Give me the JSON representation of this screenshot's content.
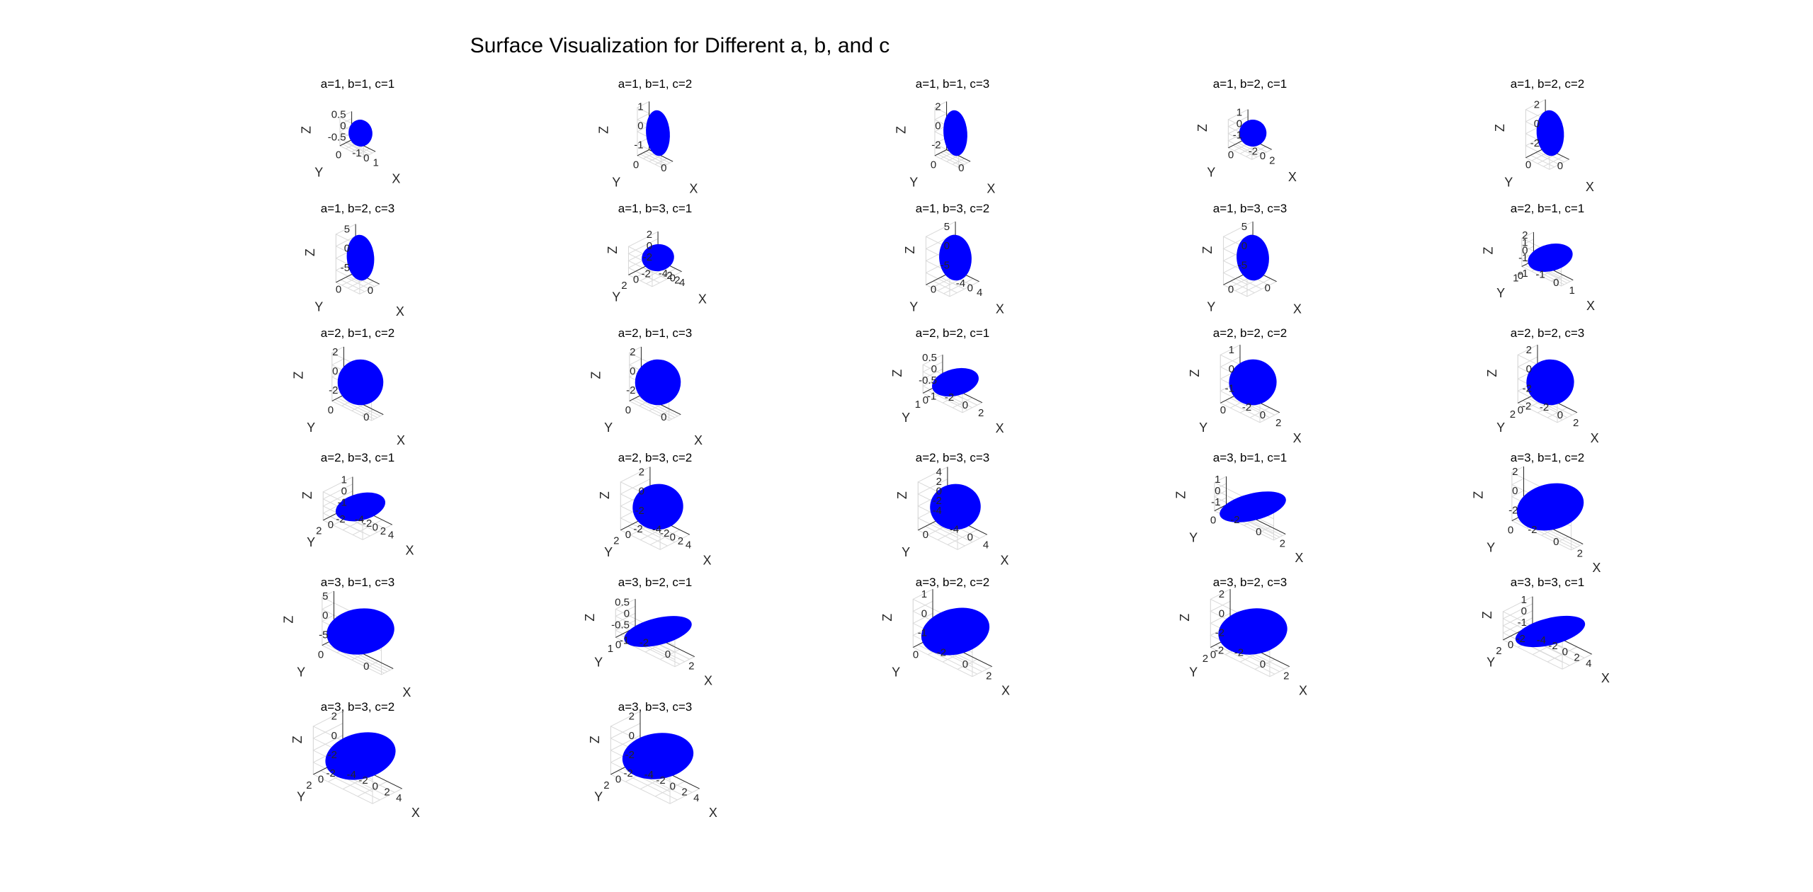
{
  "figure": {
    "title": "Surface Visualization for Different a, b, and c"
  },
  "colors": {
    "surface": "#0000ff",
    "axis": "#262626",
    "grid": "#d9d9d9"
  },
  "chart_data": [
    {
      "type": "surface",
      "title": "a=1, b=1, c=1",
      "a": 1,
      "b": 1,
      "c": 1,
      "xlabel": "X",
      "ylabel": "Y",
      "zlabel": "Z",
      "xticks": [
        "-1",
        "0",
        "1"
      ],
      "yticks": [
        "0"
      ],
      "zticks": [
        "0.5",
        "0",
        "-0.5"
      ]
    },
    {
      "type": "surface",
      "title": "a=1, b=1, c=2",
      "a": 1,
      "b": 1,
      "c": 2,
      "xlabel": "X",
      "ylabel": "Y",
      "zlabel": "Z",
      "xticks": [
        "0"
      ],
      "yticks": [
        "0"
      ],
      "zticks": [
        "1",
        "0",
        "-1"
      ]
    },
    {
      "type": "surface",
      "title": "a=1, b=1, c=3",
      "a": 1,
      "b": 1,
      "c": 3,
      "xlabel": "X",
      "ylabel": "Y",
      "zlabel": "Z",
      "xticks": [
        "0"
      ],
      "yticks": [
        "0"
      ],
      "zticks": [
        "2",
        "0",
        "-2"
      ]
    },
    {
      "type": "surface",
      "title": "a=1, b=2, c=1",
      "a": 1,
      "b": 2,
      "c": 1,
      "xlabel": "X",
      "ylabel": "Y",
      "zlabel": "Z",
      "xticks": [
        "-2",
        "0",
        "2"
      ],
      "yticks": [
        "0"
      ],
      "zticks": [
        "1",
        "0",
        "-1"
      ]
    },
    {
      "type": "surface",
      "title": "a=1, b=2, c=2",
      "a": 1,
      "b": 2,
      "c": 2,
      "xlabel": "X",
      "ylabel": "Y",
      "zlabel": "Z",
      "xticks": [
        "0"
      ],
      "yticks": [
        "0"
      ],
      "zticks": [
        "2",
        "0",
        "-2"
      ]
    },
    {
      "type": "surface",
      "title": "a=1, b=2, c=3",
      "a": 1,
      "b": 2,
      "c": 3,
      "xlabel": "X",
      "ylabel": "Y",
      "zlabel": "Z",
      "xticks": [
        "0"
      ],
      "yticks": [
        "0"
      ],
      "zticks": [
        "5",
        "0",
        "-5"
      ]
    },
    {
      "type": "surface",
      "title": "a=1, b=3, c=1",
      "a": 1,
      "b": 3,
      "c": 1,
      "xlabel": "X",
      "ylabel": "Y",
      "zlabel": "Z",
      "xticks": [
        "-4",
        "-2",
        "0",
        "2",
        "4"
      ],
      "yticks": [
        "2",
        "0",
        "-2"
      ],
      "zticks": [
        "2",
        "0",
        "-2"
      ]
    },
    {
      "type": "surface",
      "title": "a=1, b=3, c=2",
      "a": 1,
      "b": 3,
      "c": 2,
      "xlabel": "X",
      "ylabel": "Y",
      "zlabel": "Z",
      "xticks": [
        "-4",
        "0",
        "4"
      ],
      "yticks": [
        "0"
      ],
      "zticks": [
        "5",
        "0",
        "-5"
      ]
    },
    {
      "type": "surface",
      "title": "a=1, b=3, c=3",
      "a": 1,
      "b": 3,
      "c": 3,
      "xlabel": "X",
      "ylabel": "Y",
      "zlabel": "Z",
      "xticks": [
        "0"
      ],
      "yticks": [
        "0"
      ],
      "zticks": [
        "5",
        "0",
        "-5"
      ]
    },
    {
      "type": "surface",
      "title": "a=2, b=1, c=1",
      "a": 2,
      "b": 1,
      "c": 1,
      "xlabel": "X",
      "ylabel": "Y",
      "zlabel": "Z",
      "xticks": [
        "-1",
        "0",
        "1"
      ],
      "yticks": [
        "1",
        "0",
        "-1"
      ],
      "zticks": [
        "2",
        "1",
        "0",
        "-1"
      ]
    },
    {
      "type": "surface",
      "title": "a=2, b=1, c=2",
      "a": 2,
      "b": 1,
      "c": 2,
      "xlabel": "X",
      "ylabel": "Y",
      "zlabel": "Z",
      "xticks": [
        "0"
      ],
      "yticks": [
        "0"
      ],
      "zticks": [
        "2",
        "0",
        "-2"
      ]
    },
    {
      "type": "surface",
      "title": "a=2, b=1, c=3",
      "a": 2,
      "b": 1,
      "c": 3,
      "xlabel": "X",
      "ylabel": "Y",
      "zlabel": "Z",
      "xticks": [
        "0"
      ],
      "yticks": [
        "0"
      ],
      "zticks": [
        "2",
        "0",
        "-2"
      ]
    },
    {
      "type": "surface",
      "title": "a=2, b=2, c=1",
      "a": 2,
      "b": 2,
      "c": 1,
      "xlabel": "X",
      "ylabel": "Y",
      "zlabel": "Z",
      "xticks": [
        "-2",
        "0",
        "2"
      ],
      "yticks": [
        "1",
        "0",
        "-1"
      ],
      "zticks": [
        "0.5",
        "0",
        "-0.5"
      ]
    },
    {
      "type": "surface",
      "title": "a=2, b=2, c=2",
      "a": 2,
      "b": 2,
      "c": 2,
      "xlabel": "X",
      "ylabel": "Y",
      "zlabel": "Z",
      "xticks": [
        "-2",
        "0",
        "2"
      ],
      "yticks": [
        "0"
      ],
      "zticks": [
        "1",
        "0",
        "-1"
      ]
    },
    {
      "type": "surface",
      "title": "a=2, b=2, c=3",
      "a": 2,
      "b": 2,
      "c": 3,
      "xlabel": "X",
      "ylabel": "Y",
      "zlabel": "Z",
      "xticks": [
        "-2",
        "0",
        "2"
      ],
      "yticks": [
        "2",
        "0",
        "-2"
      ],
      "zticks": [
        "2",
        "0",
        "-2"
      ]
    },
    {
      "type": "surface",
      "title": "a=2, b=3, c=1",
      "a": 2,
      "b": 3,
      "c": 1,
      "xlabel": "X",
      "ylabel": "Y",
      "zlabel": "Z",
      "xticks": [
        "-4",
        "-2",
        "0",
        "2",
        "4"
      ],
      "yticks": [
        "2",
        "0",
        "-2"
      ],
      "zticks": [
        "1",
        "0",
        "-1"
      ]
    },
    {
      "type": "surface",
      "title": "a=2, b=3, c=2",
      "a": 2,
      "b": 3,
      "c": 2,
      "xlabel": "X",
      "ylabel": "Y",
      "zlabel": "Z",
      "xticks": [
        "-4",
        "-2",
        "0",
        "2",
        "4"
      ],
      "yticks": [
        "2",
        "0",
        "-2"
      ],
      "zticks": [
        "2",
        "0",
        "-2"
      ]
    },
    {
      "type": "surface",
      "title": "a=2, b=3, c=3",
      "a": 2,
      "b": 3,
      "c": 3,
      "xlabel": "X",
      "ylabel": "Y",
      "zlabel": "Z",
      "xticks": [
        "-4",
        "0",
        "4"
      ],
      "yticks": [
        "0"
      ],
      "zticks": [
        "4",
        "2",
        "0",
        "-2",
        "-4"
      ]
    },
    {
      "type": "surface",
      "title": "a=3, b=1, c=1",
      "a": 3,
      "b": 1,
      "c": 1,
      "xlabel": "X",
      "ylabel": "Y",
      "zlabel": "Z",
      "xticks": [
        "-2",
        "0",
        "2"
      ],
      "yticks": [
        "0"
      ],
      "zticks": [
        "1",
        "0",
        "-1"
      ]
    },
    {
      "type": "surface",
      "title": "a=3, b=1, c=2",
      "a": 3,
      "b": 1,
      "c": 2,
      "xlabel": "X",
      "ylabel": "Y",
      "zlabel": "Z",
      "xticks": [
        "-2",
        "0",
        "2"
      ],
      "yticks": [
        "0"
      ],
      "zticks": [
        "2",
        "0",
        "-2"
      ]
    },
    {
      "type": "surface",
      "title": "a=3, b=1, c=3",
      "a": 3,
      "b": 1,
      "c": 3,
      "xlabel": "X",
      "ylabel": "Y",
      "zlabel": "Z",
      "xticks": [
        "0"
      ],
      "yticks": [
        "0"
      ],
      "zticks": [
        "5",
        "0",
        "-5"
      ]
    },
    {
      "type": "surface",
      "title": "a=3, b=2, c=1",
      "a": 3,
      "b": 2,
      "c": 1,
      "xlabel": "X",
      "ylabel": "Y",
      "zlabel": "Z",
      "xticks": [
        "-2",
        "0",
        "2"
      ],
      "yticks": [
        "1",
        "0",
        "-1"
      ],
      "zticks": [
        "0.5",
        "0",
        "-0.5"
      ]
    },
    {
      "type": "surface",
      "title": "a=3, b=2, c=2",
      "a": 3,
      "b": 2,
      "c": 2,
      "xlabel": "X",
      "ylabel": "Y",
      "zlabel": "Z",
      "xticks": [
        "-2",
        "0",
        "2"
      ],
      "yticks": [
        "0"
      ],
      "zticks": [
        "1",
        "0",
        "-1"
      ]
    },
    {
      "type": "surface",
      "title": "a=3, b=2, c=3",
      "a": 3,
      "b": 2,
      "c": 3,
      "xlabel": "X",
      "ylabel": "Y",
      "zlabel": "Z",
      "xticks": [
        "-2",
        "0",
        "2"
      ],
      "yticks": [
        "2",
        "0",
        "-2"
      ],
      "zticks": [
        "2",
        "0",
        "-2"
      ]
    },
    {
      "type": "surface",
      "title": "a=3, b=3, c=1",
      "a": 3,
      "b": 3,
      "c": 1,
      "xlabel": "X",
      "ylabel": "Y",
      "zlabel": "Z",
      "xticks": [
        "-4",
        "-2",
        "0",
        "2",
        "4"
      ],
      "yticks": [
        "2",
        "0",
        "-2"
      ],
      "zticks": [
        "1",
        "0",
        "-1"
      ]
    },
    {
      "type": "surface",
      "title": "a=3, b=3, c=2",
      "a": 3,
      "b": 3,
      "c": 2,
      "xlabel": "X",
      "ylabel": "Y",
      "zlabel": "Z",
      "xticks": [
        "-4",
        "-2",
        "0",
        "2",
        "4"
      ],
      "yticks": [
        "2",
        "0",
        "-2"
      ],
      "zticks": [
        "2",
        "0",
        "-2"
      ]
    },
    {
      "type": "surface",
      "title": "a=3, b=3, c=3",
      "a": 3,
      "b": 3,
      "c": 3,
      "xlabel": "X",
      "ylabel": "Y",
      "zlabel": "Z",
      "xticks": [
        "-4",
        "-2",
        "0",
        "2",
        "4"
      ],
      "yticks": [
        "2",
        "0",
        "-2"
      ],
      "zticks": [
        "2",
        "0",
        "-2"
      ]
    }
  ]
}
